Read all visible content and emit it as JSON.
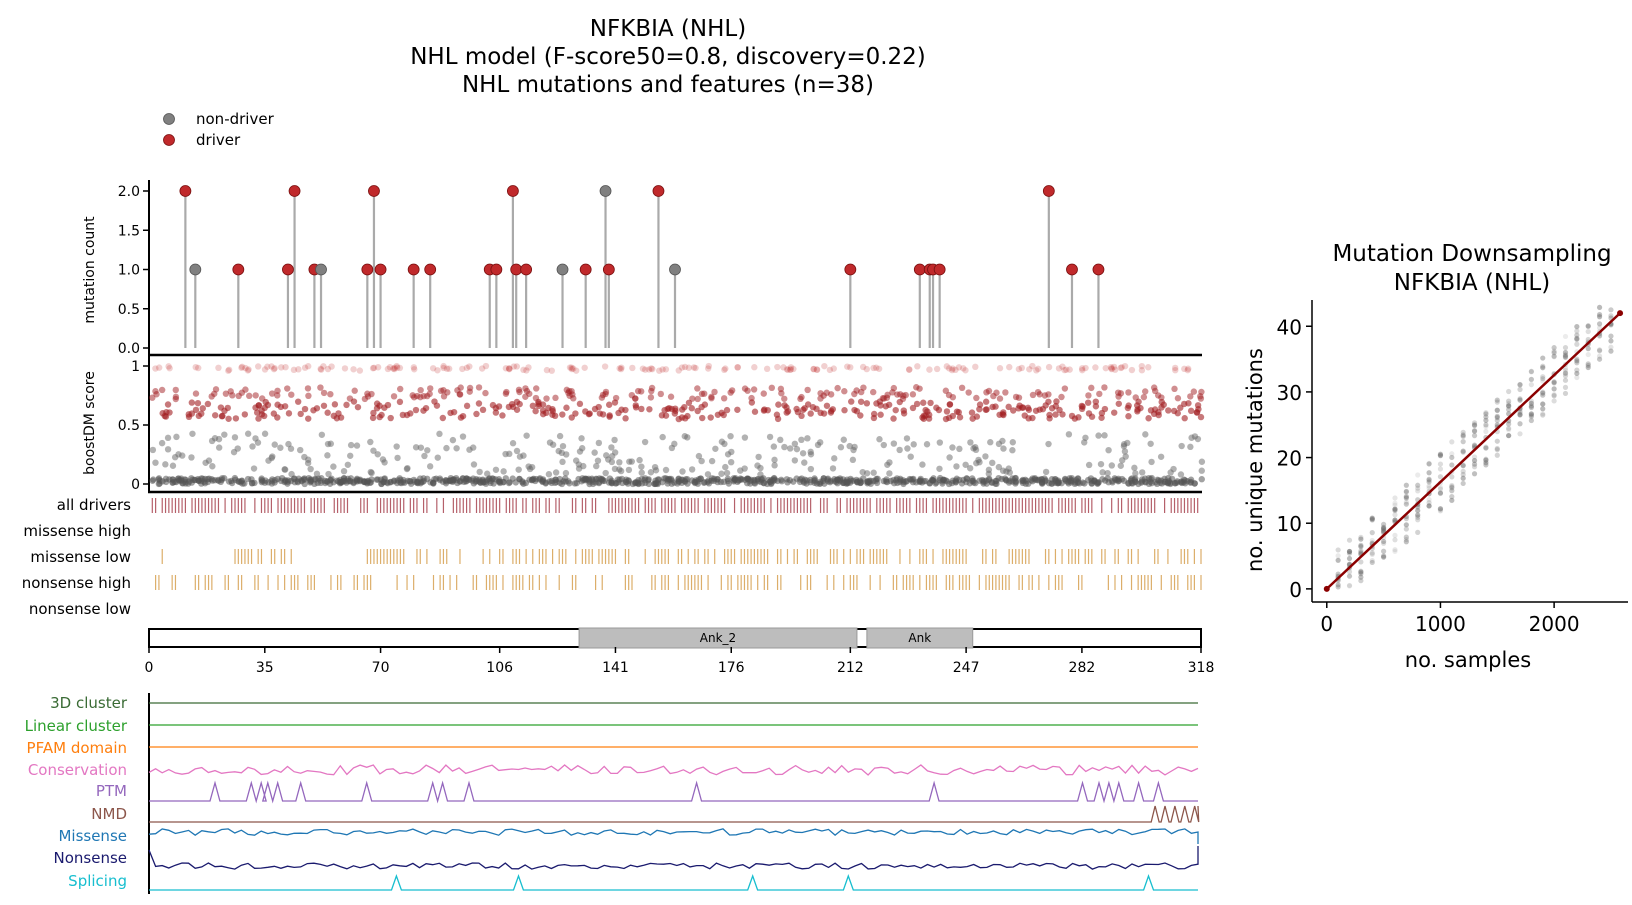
{
  "title": {
    "line1": "NFKBIA (NHL)",
    "line2": "NHL model (F-score50=0.8, discovery=0.22)",
    "line3": "NHL mutations and features (n=38)"
  },
  "legend": {
    "position": "top-left",
    "items": [
      {
        "label": "non-driver",
        "color": "#808080"
      },
      {
        "label": "driver",
        "color": "#c0292b"
      }
    ]
  },
  "colors": {
    "driver": "#c0292b",
    "non_driver": "#808080",
    "stem": "#aaaaaa",
    "all_drivers_ticks": "#b5606a",
    "consequence_ticks": "#dcae6a",
    "domain_fill": "#bdbdbd",
    "downsampling_line": "#8b0000"
  },
  "protein": {
    "length": 318,
    "x_ticks": [
      0,
      35,
      70,
      106,
      141,
      176,
      212,
      247,
      282,
      318
    ],
    "domains": [
      {
        "name": "Ank_2",
        "start": 130,
        "end": 214
      },
      {
        "name": "Ank",
        "start": 217,
        "end": 249
      }
    ]
  },
  "chart_data": [
    {
      "id": "needle",
      "type": "scatter",
      "ylabel": "mutation count",
      "ylim": [
        0,
        2
      ],
      "y_ticks": [
        "0.0",
        "0.5",
        "1.0",
        "1.5",
        "2.0"
      ],
      "points": [
        {
          "x": 11,
          "y": 2,
          "driver": true
        },
        {
          "x": 14,
          "y": 1,
          "driver": false
        },
        {
          "x": 27,
          "y": 1,
          "driver": true
        },
        {
          "x": 42,
          "y": 1,
          "driver": true
        },
        {
          "x": 44,
          "y": 2,
          "driver": true
        },
        {
          "x": 50,
          "y": 1,
          "driver": true
        },
        {
          "x": 52,
          "y": 1,
          "driver": false
        },
        {
          "x": 66,
          "y": 1,
          "driver": true
        },
        {
          "x": 68,
          "y": 2,
          "driver": true
        },
        {
          "x": 70,
          "y": 1,
          "driver": true
        },
        {
          "x": 80,
          "y": 1,
          "driver": true
        },
        {
          "x": 85,
          "y": 1,
          "driver": true
        },
        {
          "x": 103,
          "y": 1,
          "driver": true
        },
        {
          "x": 105,
          "y": 1,
          "driver": true
        },
        {
          "x": 110,
          "y": 2,
          "driver": true
        },
        {
          "x": 111,
          "y": 1,
          "driver": true
        },
        {
          "x": 114,
          "y": 1,
          "driver": true
        },
        {
          "x": 125,
          "y": 1,
          "driver": false
        },
        {
          "x": 132,
          "y": 1,
          "driver": true
        },
        {
          "x": 138,
          "y": 2,
          "driver": false
        },
        {
          "x": 139,
          "y": 1,
          "driver": true
        },
        {
          "x": 154,
          "y": 2,
          "driver": true
        },
        {
          "x": 159,
          "y": 1,
          "driver": false
        },
        {
          "x": 212,
          "y": 1,
          "driver": true
        },
        {
          "x": 233,
          "y": 1,
          "driver": true
        },
        {
          "x": 236,
          "y": 1,
          "driver": true
        },
        {
          "x": 237,
          "y": 1,
          "driver": true
        },
        {
          "x": 239,
          "y": 1,
          "driver": true
        },
        {
          "x": 272,
          "y": 2,
          "driver": true
        },
        {
          "x": 279,
          "y": 1,
          "driver": true
        },
        {
          "x": 287,
          "y": 1,
          "driver": true
        }
      ]
    },
    {
      "id": "boostdm",
      "type": "scatter",
      "ylabel": "boostDM score",
      "ylim": [
        0,
        1
      ],
      "y_ticks": [
        "0",
        "0.5",
        "1"
      ],
      "points": []
    },
    {
      "id": "consequence-tracks",
      "type": "heatmap",
      "rows": [
        "all drivers",
        "missense high",
        "missense low",
        "nonsense high",
        "nonsense low"
      ]
    },
    {
      "id": "feature-tracks",
      "type": "line",
      "series": [
        {
          "name": "3D cluster",
          "color": "#3a6b35",
          "shape": "flat"
        },
        {
          "name": "Linear cluster",
          "color": "#2ca02c",
          "shape": "flat"
        },
        {
          "name": "PFAM domain",
          "color": "#ff7f0e",
          "shape": "flat"
        },
        {
          "name": "Conservation",
          "color": "#e377c2",
          "shape": "noise"
        },
        {
          "name": "PTM",
          "color": "#9467bd",
          "shape": "spikes",
          "peaks": [
            20,
            31,
            34,
            36,
            39,
            46,
            66,
            86,
            89,
            97,
            166,
            238,
            283,
            288,
            291,
            294,
            300,
            306
          ]
        },
        {
          "name": "NMD",
          "color": "#8c564b",
          "shape": "step",
          "peaks": [
            305,
            308,
            311,
            314,
            317
          ]
        },
        {
          "name": "Missense",
          "color": "#1f77b4",
          "shape": "noise"
        },
        {
          "name": "Nonsense",
          "color": "#1a1a6e",
          "shape": "noise"
        },
        {
          "name": "Splicing",
          "color": "#17becf",
          "shape": "spikes",
          "peaks": [
            75,
            112,
            183,
            212,
            303
          ]
        }
      ]
    },
    {
      "id": "downsampling",
      "type": "scatter",
      "title_line1": "Mutation Downsampling",
      "title_line2": "NFKBIA (NHL)",
      "xlabel": "no. samples",
      "ylabel": "no. unique mutations",
      "xlim": [
        -130,
        2650
      ],
      "ylim": [
        -2,
        44
      ],
      "x_ticks": [
        0,
        1000,
        2000
      ],
      "y_ticks": [
        0,
        10,
        20,
        30,
        40
      ],
      "fit_line": [
        [
          0,
          0
        ],
        [
          2580,
          42
        ]
      ]
    }
  ]
}
